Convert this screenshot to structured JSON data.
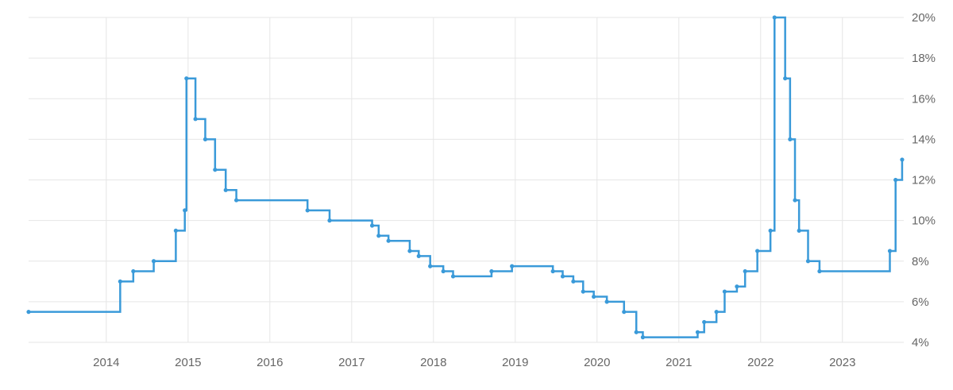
{
  "chart_data": {
    "type": "line",
    "subtype": "step",
    "title": "",
    "xlabel": "",
    "ylabel": "",
    "grid": true,
    "y_axis_position": "right",
    "x_range": [
      2013.05,
      2023.75
    ],
    "ylim": [
      4,
      20
    ],
    "y_ticks": [
      4,
      6,
      8,
      10,
      12,
      14,
      16,
      18,
      20
    ],
    "y_tick_labels": [
      "4%",
      "6%",
      "8%",
      "10%",
      "12%",
      "14%",
      "16%",
      "18%",
      "20%"
    ],
    "x_ticks": [
      2014,
      2015,
      2016,
      2017,
      2018,
      2019,
      2020,
      2021,
      2022,
      2023
    ],
    "x_tick_labels": [
      "2014",
      "2015",
      "2016",
      "2017",
      "2018",
      "2019",
      "2020",
      "2021",
      "2022",
      "2023"
    ],
    "colors": {
      "line": "#3a9ad9",
      "grid": "#e6e6e6",
      "tick_text": "#666666"
    },
    "series": [
      {
        "x": [
          2013.05,
          2014.17,
          2014.33,
          2014.58,
          2014.85,
          2014.96,
          2014.98,
          2015.09,
          2015.21,
          2015.33,
          2015.46,
          2015.59,
          2016.46,
          2016.73,
          2017.25,
          2017.33,
          2017.45,
          2017.71,
          2017.82,
          2017.96,
          2018.12,
          2018.24,
          2018.71,
          2018.96,
          2019.46,
          2019.58,
          2019.71,
          2019.83,
          2019.96,
          2020.12,
          2020.33,
          2020.48,
          2020.56,
          2021.23,
          2021.31,
          2021.46,
          2021.56,
          2021.71,
          2021.81,
          2021.96,
          2022.12,
          2022.17,
          2022.3,
          2022.36,
          2022.42,
          2022.47,
          2022.58,
          2022.72,
          2023.58,
          2023.65,
          2023.73
        ],
        "y": [
          5.5,
          7,
          7.5,
          8,
          9.5,
          10.5,
          17,
          15,
          14,
          12.5,
          11.5,
          11,
          10.5,
          10,
          9.75,
          9.25,
          9,
          8.5,
          8.25,
          7.75,
          7.5,
          7.25,
          7.5,
          7.75,
          7.5,
          7.25,
          7,
          6.5,
          6.25,
          6,
          5.5,
          4.5,
          4.25,
          4.5,
          5,
          5.5,
          6.5,
          6.75,
          7.5,
          8.5,
          9.5,
          20,
          17,
          14,
          11,
          9.5,
          8,
          7.5,
          8.5,
          12,
          13
        ]
      }
    ]
  }
}
